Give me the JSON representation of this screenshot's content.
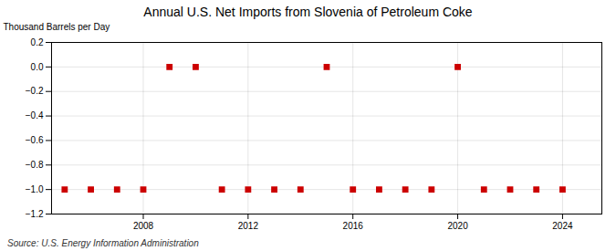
{
  "chart_data": {
    "type": "scatter",
    "title": "Annual U.S. Net Imports from Slovenia of Petroleum Coke",
    "ylabel": "Thousand Barrels per Day",
    "source": "Source: U.S. Energy Information Administration",
    "x": [
      2005,
      2006,
      2007,
      2008,
      2009,
      2010,
      2011,
      2012,
      2013,
      2014,
      2015,
      2016,
      2017,
      2018,
      2019,
      2020,
      2021,
      2022,
      2023,
      2024
    ],
    "values": [
      -1.0,
      -1.0,
      -1.0,
      -1.0,
      0.0,
      0.0,
      -1.0,
      -1.0,
      -1.0,
      -1.0,
      0.0,
      -1.0,
      -1.0,
      -1.0,
      -1.0,
      0.0,
      -1.0,
      -1.0,
      -1.0,
      -1.0
    ],
    "xlim": [
      2004.5,
      2025.5
    ],
    "xticks": [
      2008,
      2012,
      2016,
      2020,
      2024
    ],
    "ylim": [
      -1.2,
      0.2
    ],
    "yticks": [
      0.2,
      {
        "value": 0.0,
        "label": "0.0"
      },
      {
        "value": -0.2,
        "label": "−0.2"
      },
      {
        "value": -0.4,
        "label": "−0.4"
      },
      {
        "value": -0.6,
        "label": "−0.6"
      },
      {
        "value": -0.8,
        "label": "−0.8"
      },
      {
        "value": -1.0,
        "label": "−1.0"
      },
      {
        "value": -1.2,
        "label": "−1.2"
      }
    ],
    "color": "#cc0000",
    "marker": "square",
    "grid": true
  }
}
